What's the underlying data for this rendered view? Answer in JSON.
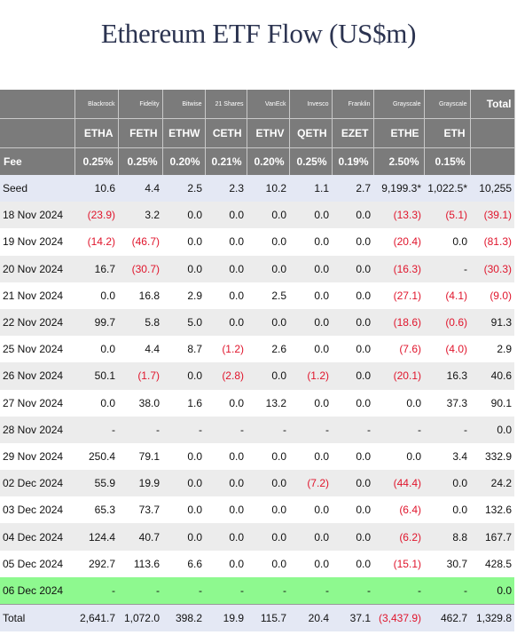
{
  "title": "Ethereum ETF Flow (US$m)",
  "colors": {
    "header_bg": "#7b7b7b",
    "negative": "#e0152c",
    "seed_bg": "#e4e8f4",
    "today_bg": "#8ef98f",
    "stripe_bg": "#ececec"
  },
  "issuers": [
    "Blackrock",
    "Fidelity",
    "Bitwise",
    "21 Shares",
    "VanEck",
    "Invesco",
    "Franklin",
    "Grayscale",
    "Grayscale",
    "Total"
  ],
  "tickers": [
    "ETHA",
    "FETH",
    "ETHW",
    "CETH",
    "ETHV",
    "QETH",
    "EZET",
    "ETHE",
    "ETH"
  ],
  "fee": {
    "label": "Fee",
    "values": [
      "0.25%",
      "0.25%",
      "0.20%",
      "0.21%",
      "0.20%",
      "0.25%",
      "0.19%",
      "2.50%",
      "0.15%"
    ]
  },
  "rows": [
    {
      "label": "Seed",
      "values": [
        "10.6",
        "4.4",
        "2.5",
        "2.3",
        "10.2",
        "1.1",
        "2.7",
        "9,199.3*",
        "1,022.5*",
        "10,255"
      ]
    },
    {
      "label": "18 Nov 2024",
      "values": [
        "(23.9)",
        "3.2",
        "0.0",
        "0.0",
        "0.0",
        "0.0",
        "0.0",
        "(13.3)",
        "(5.1)",
        "(39.1)"
      ]
    },
    {
      "label": "19 Nov 2024",
      "values": [
        "(14.2)",
        "(46.7)",
        "0.0",
        "0.0",
        "0.0",
        "0.0",
        "0.0",
        "(20.4)",
        "0.0",
        "(81.3)"
      ]
    },
    {
      "label": "20 Nov 2024",
      "values": [
        "16.7",
        "(30.7)",
        "0.0",
        "0.0",
        "0.0",
        "0.0",
        "0.0",
        "(16.3)",
        "-",
        "(30.3)"
      ]
    },
    {
      "label": "21 Nov 2024",
      "values": [
        "0.0",
        "16.8",
        "2.9",
        "0.0",
        "2.5",
        "0.0",
        "0.0",
        "(27.1)",
        "(4.1)",
        "(9.0)"
      ]
    },
    {
      "label": "22 Nov 2024",
      "values": [
        "99.7",
        "5.8",
        "5.0",
        "0.0",
        "0.0",
        "0.0",
        "0.0",
        "(18.6)",
        "(0.6)",
        "91.3"
      ]
    },
    {
      "label": "25 Nov 2024",
      "values": [
        "0.0",
        "4.4",
        "8.7",
        "(1.2)",
        "2.6",
        "0.0",
        "0.0",
        "(7.6)",
        "(4.0)",
        "2.9"
      ]
    },
    {
      "label": "26 Nov 2024",
      "values": [
        "50.1",
        "(1.7)",
        "0.0",
        "(2.8)",
        "0.0",
        "(1.2)",
        "0.0",
        "(20.1)",
        "16.3",
        "40.6"
      ]
    },
    {
      "label": "27 Nov 2024",
      "values": [
        "0.0",
        "38.0",
        "1.6",
        "0.0",
        "13.2",
        "0.0",
        "0.0",
        "0.0",
        "37.3",
        "90.1"
      ]
    },
    {
      "label": "28 Nov 2024",
      "values": [
        "-",
        "-",
        "-",
        "-",
        "-",
        "-",
        "-",
        "-",
        "-",
        "0.0"
      ]
    },
    {
      "label": "29 Nov 2024",
      "values": [
        "250.4",
        "79.1",
        "0.0",
        "0.0",
        "0.0",
        "0.0",
        "0.0",
        "0.0",
        "3.4",
        "332.9"
      ]
    },
    {
      "label": "02 Dec 2024",
      "values": [
        "55.9",
        "19.9",
        "0.0",
        "0.0",
        "0.0",
        "(7.2)",
        "0.0",
        "(44.4)",
        "0.0",
        "24.2"
      ]
    },
    {
      "label": "03 Dec 2024",
      "values": [
        "65.3",
        "73.7",
        "0.0",
        "0.0",
        "0.0",
        "0.0",
        "0.0",
        "(6.4)",
        "0.0",
        "132.6"
      ]
    },
    {
      "label": "04 Dec 2024",
      "values": [
        "124.4",
        "40.7",
        "0.0",
        "0.0",
        "0.0",
        "0.0",
        "0.0",
        "(6.2)",
        "8.8",
        "167.7"
      ]
    },
    {
      "label": "05 Dec 2024",
      "values": [
        "292.7",
        "113.6",
        "6.6",
        "0.0",
        "0.0",
        "0.0",
        "0.0",
        "(15.1)",
        "30.7",
        "428.5"
      ]
    },
    {
      "label": "06 Dec 2024",
      "values": [
        "-",
        "-",
        "-",
        "-",
        "-",
        "-",
        "-",
        "-",
        "-",
        "0.0"
      ]
    }
  ],
  "total": {
    "label": "Total",
    "values": [
      "2,641.7",
      "1,072.0",
      "398.2",
      "19.9",
      "115.7",
      "20.4",
      "37.1",
      "(3,437.9)",
      "462.7",
      "1,329.8"
    ]
  }
}
